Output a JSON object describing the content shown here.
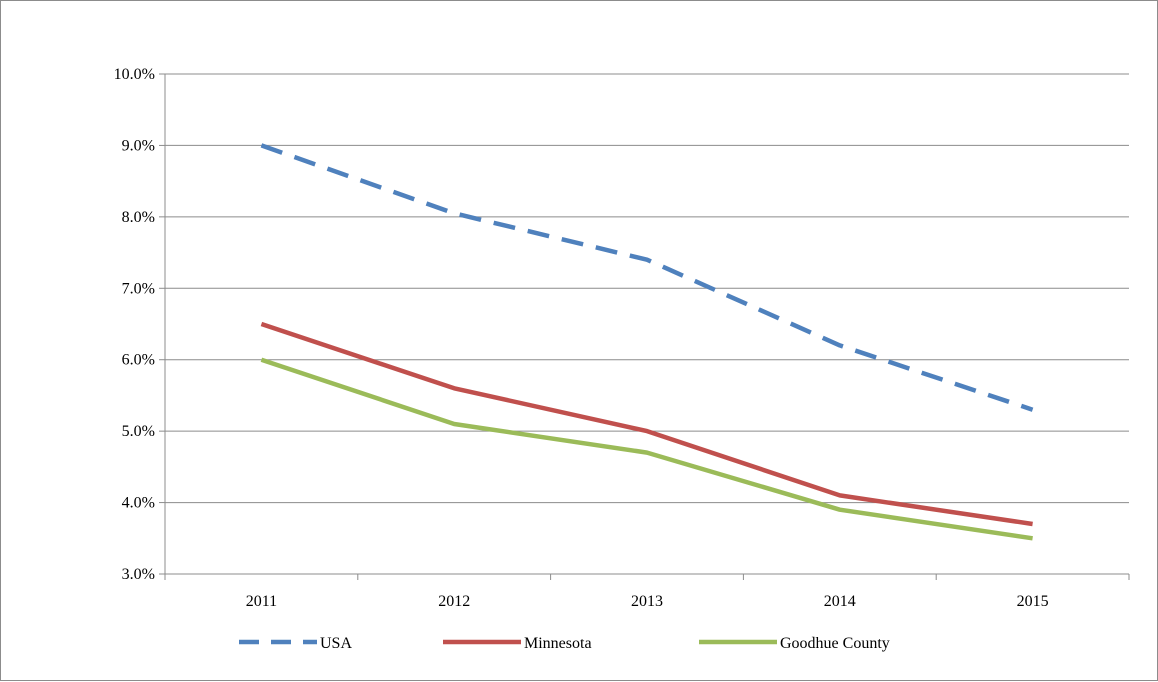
{
  "chart_data": {
    "type": "line",
    "categories": [
      "2011",
      "2012",
      "2013",
      "2014",
      "2015"
    ],
    "ylim": [
      0.03,
      0.1
    ],
    "yticks": [
      0.03,
      0.04,
      0.05,
      0.06,
      0.07,
      0.08,
      0.09,
      0.1
    ],
    "ytick_labels": [
      "3.0%",
      "4.0%",
      "5.0%",
      "6.0%",
      "7.0%",
      "8.0%",
      "9.0%",
      "10.0%"
    ],
    "grid": true,
    "legend": "bottom",
    "series": [
      {
        "name": "USA",
        "values": [
          0.09,
          0.0805,
          0.074,
          0.062,
          0.053
        ],
        "color": "#4f81bd",
        "dashed": true
      },
      {
        "name": "Minnesota",
        "values": [
          0.065,
          0.056,
          0.05,
          0.041,
          0.037
        ],
        "color": "#c0504d",
        "dashed": false
      },
      {
        "name": "Goodhue County",
        "values": [
          0.06,
          0.051,
          0.047,
          0.039,
          0.035
        ],
        "color": "#9bbb59",
        "dashed": false
      }
    ]
  }
}
